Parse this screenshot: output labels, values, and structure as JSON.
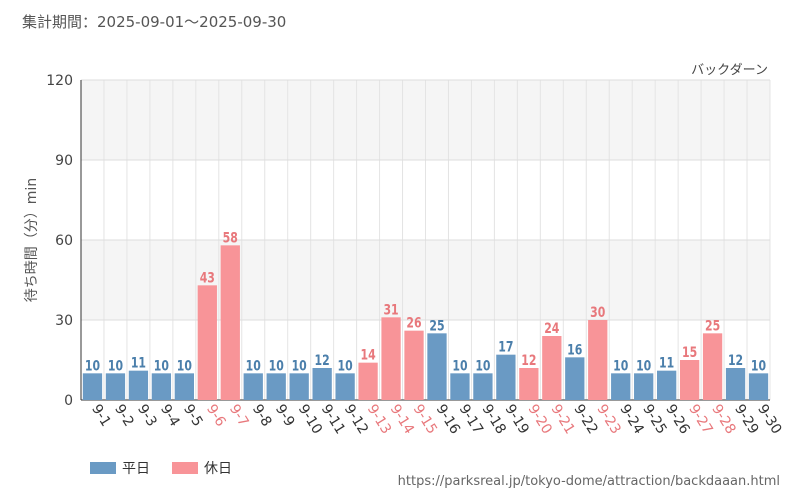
{
  "header": {
    "period": "集計期間：2025-09-01～2025-09-30"
  },
  "footer": {
    "url": "https://parksreal.jp/tokyo-dome/attraction/backdaaan.html"
  },
  "colors": {
    "weekday": "#6a9ac4",
    "holiday": "#f89498",
    "weekday_label": "#4b7fab",
    "holiday_label": "#e8787c"
  },
  "chart_data": {
    "type": "bar",
    "title": "バックダーン",
    "ylabel": "待ち時間（分）min",
    "xlabel": "",
    "ylim": [
      0,
      120
    ],
    "yticks": [
      0,
      30,
      60,
      90,
      120
    ],
    "categories": [
      "9-1",
      "9-2",
      "9-3",
      "9-4",
      "9-5",
      "9-6",
      "9-7",
      "9-8",
      "9-9",
      "9-10",
      "9-11",
      "9-12",
      "9-13",
      "9-14",
      "9-15",
      "9-16",
      "9-17",
      "9-18",
      "9-19",
      "9-20",
      "9-21",
      "9-22",
      "9-23",
      "9-24",
      "9-25",
      "9-26",
      "9-27",
      "9-28",
      "9-29",
      "9-30"
    ],
    "values": [
      10,
      10,
      11,
      10,
      10,
      43,
      58,
      10,
      10,
      10,
      12,
      10,
      14,
      31,
      26,
      25,
      10,
      10,
      17,
      12,
      24,
      16,
      30,
      10,
      10,
      11,
      15,
      25,
      12,
      10
    ],
    "day_type": [
      "w",
      "w",
      "w",
      "w",
      "w",
      "h",
      "h",
      "w",
      "w",
      "w",
      "w",
      "w",
      "h",
      "h",
      "h",
      "w",
      "w",
      "w",
      "w",
      "h",
      "h",
      "w",
      "h",
      "w",
      "w",
      "w",
      "h",
      "h",
      "w",
      "w"
    ],
    "legend": [
      {
        "key": "w",
        "label": "平日"
      },
      {
        "key": "h",
        "label": "休日"
      }
    ]
  }
}
